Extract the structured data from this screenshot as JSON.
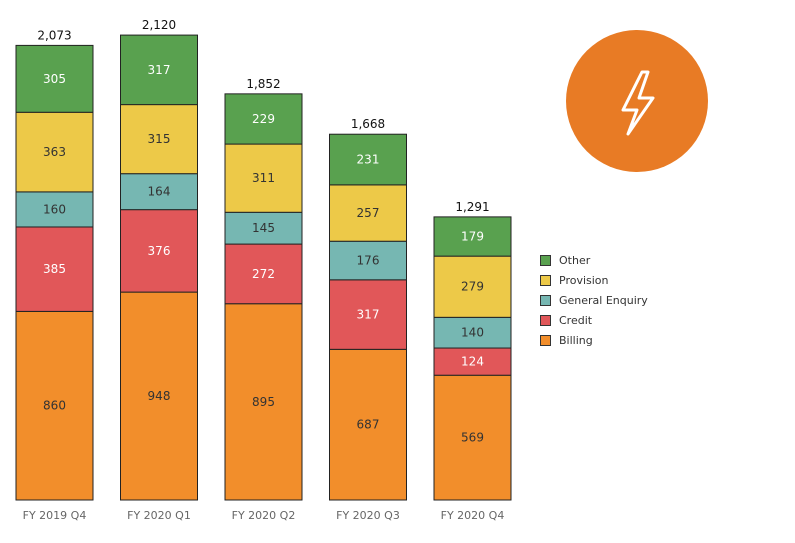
{
  "chart_data": {
    "type": "bar",
    "stacked": true,
    "categories": [
      "FY 2019 Q4",
      "FY 2020 Q1",
      "FY 2020 Q2",
      "FY 2020 Q3",
      "FY 2020 Q4"
    ],
    "totals": [
      "2,073",
      "2,120",
      "1,852",
      "1,668",
      "1,291"
    ],
    "series": [
      {
        "name": "Billing",
        "color": "#f28e2b",
        "labelColor": "#333333",
        "values": [
          860,
          948,
          895,
          687,
          569
        ]
      },
      {
        "name": "Credit",
        "color": "#e15759",
        "labelColor": "#ffffff",
        "values": [
          385,
          376,
          272,
          317,
          124
        ]
      },
      {
        "name": "General Enquiry",
        "color": "#76b7b2",
        "labelColor": "#333333",
        "values": [
          160,
          164,
          145,
          176,
          140
        ]
      },
      {
        "name": "Provision",
        "color": "#edc948",
        "labelColor": "#333333",
        "values": [
          363,
          315,
          311,
          257,
          279
        ]
      },
      {
        "name": "Other",
        "color": "#59a14f",
        "labelColor": "#ffffff",
        "values": [
          305,
          317,
          229,
          231,
          179
        ]
      }
    ],
    "ylim": [
      0,
      2180
    ],
    "grid": false,
    "legend_placement": "right",
    "legend_order": [
      "Other",
      "Provision",
      "General Enquiry",
      "Credit",
      "Billing"
    ]
  },
  "badge": {
    "icon": "lightning-bolt-icon",
    "color": "#e87b25"
  }
}
